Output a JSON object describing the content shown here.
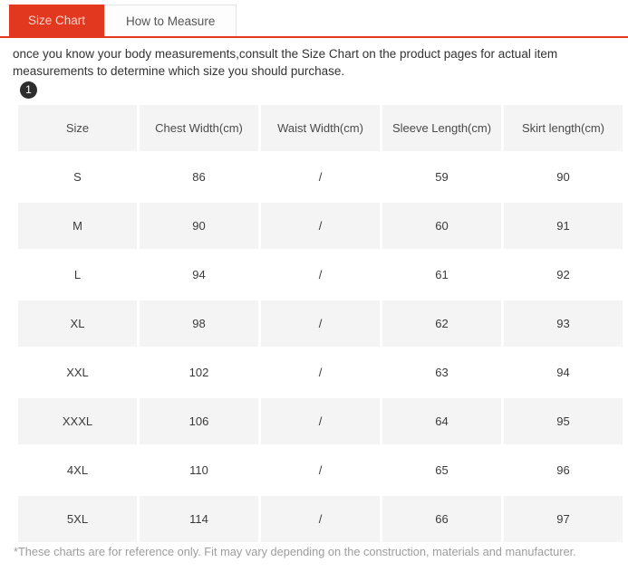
{
  "tabs": {
    "items": [
      {
        "label": "Size Chart",
        "active": true
      },
      {
        "label": "How to Measure",
        "active": false
      }
    ]
  },
  "intro": {
    "text": "once you know your body measurements,consult the Size Chart on the product pages for actual item measurements to determine which size you should purchase."
  },
  "badge": {
    "number": "1"
  },
  "size_table": {
    "columns": [
      "Size",
      "Chest Width(cm)",
      "Waist Width(cm)",
      "Sleeve Length(cm)",
      "Skirt length(cm)"
    ],
    "rows": [
      [
        "S",
        "86",
        "/",
        "59",
        "90"
      ],
      [
        "M",
        "90",
        "/",
        "60",
        "91"
      ],
      [
        "L",
        "94",
        "/",
        "61",
        "92"
      ],
      [
        "XL",
        "98",
        "/",
        "62",
        "93"
      ],
      [
        "XXL",
        "102",
        "/",
        "63",
        "94"
      ],
      [
        "XXXL",
        "106",
        "/",
        "64",
        "95"
      ],
      [
        "4XL",
        "110",
        "/",
        "65",
        "96"
      ],
      [
        "5XL",
        "114",
        "/",
        "66",
        "97"
      ]
    ]
  },
  "footnote": {
    "text": "*These charts are for reference only. Fit may vary depending on the construction, materials and manufacturer."
  },
  "colors": {
    "accent_red": "#e2381f",
    "active_tab_text": "#f8d6cb",
    "alt_row_bg": "#f4f4f4",
    "body_text": "#333333",
    "muted_text": "#9d9d9d",
    "inactive_tab_text": "#555555",
    "tab_border": "#e4e4e4"
  }
}
